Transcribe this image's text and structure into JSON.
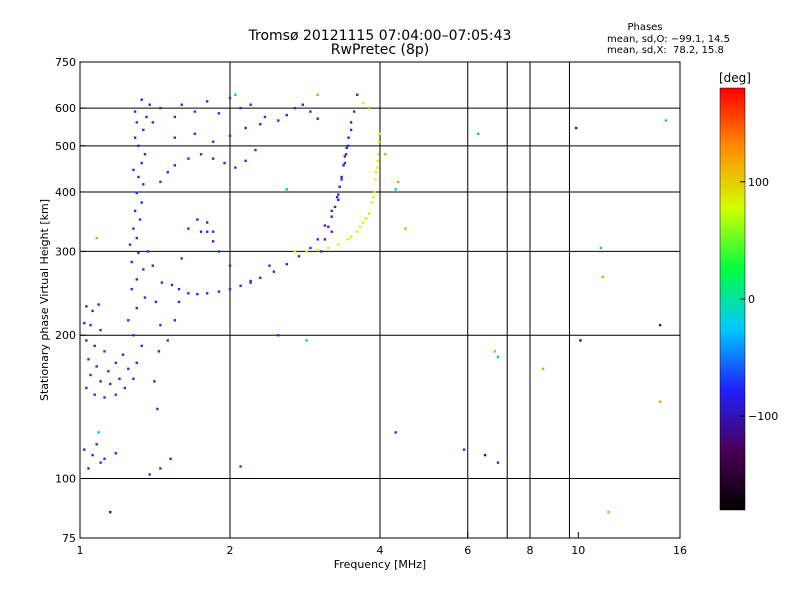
{
  "figure": {
    "title": "Tromsø 20121115 07:04:00–07:05:43",
    "subtitle": "RwPretec (8p)",
    "phase_title": "Phases",
    "phase_line_o": "mean, sd,O: −99.1, 14.5",
    "phase_line_x": "mean, sd,X:  78.2, 15.8"
  },
  "chart_data": {
    "type": "scatter",
    "xlabel": "Frequency [MHz]",
    "ylabel": "Stationary phase Virtual Height [km]",
    "x_scale": "log",
    "y_scale": "log",
    "xlim": [
      1,
      16
    ],
    "ylim": [
      75,
      750
    ],
    "x_ticks": [
      1,
      2,
      4,
      6,
      8,
      10,
      16
    ],
    "x_tick_labels": [
      "1",
      "2",
      "4",
      "6",
      "8",
      "10",
      "16"
    ],
    "x_gridlines": [
      2,
      4,
      6,
      7.2,
      8,
      9.6
    ],
    "y_ticks": [
      75,
      100,
      200,
      300,
      400,
      500,
      600,
      750
    ],
    "y_tick_labels": [
      "75",
      "100",
      "200",
      "300",
      "400",
      "500",
      "600",
      "750"
    ],
    "y_gridlines": [
      100,
      200,
      300,
      400,
      500,
      600
    ],
    "grid": true,
    "colorbar": {
      "label": "[deg]",
      "range": [
        -180,
        180
      ],
      "ticks": [
        100,
        0,
        -100
      ],
      "tick_labels": [
        "100",
        "0",
        "−100"
      ],
      "colors": [
        "#000000",
        "#4a0058",
        "#2020ff",
        "#00c8ff",
        "#00ff40",
        "#d0ff00",
        "#ff9000",
        "#ff0000"
      ]
    },
    "series": [
      {
        "color": "#2030e8",
        "values": [
          [
            1.03,
            230
          ],
          [
            1.06,
            225
          ],
          [
            1.09,
            232
          ],
          [
            1.02,
            212
          ],
          [
            1.05,
            210
          ],
          [
            1.1,
            205
          ],
          [
            1.03,
            195
          ],
          [
            1.07,
            190
          ],
          [
            1.12,
            185
          ],
          [
            1.04,
            178
          ],
          [
            1.08,
            172
          ],
          [
            1.14,
            168
          ],
          [
            1.18,
            175
          ],
          [
            1.22,
            182
          ],
          [
            1.05,
            165
          ],
          [
            1.1,
            160
          ],
          [
            1.15,
            158
          ],
          [
            1.2,
            162
          ],
          [
            1.25,
            170
          ],
          [
            1.03,
            155
          ],
          [
            1.07,
            150
          ],
          [
            1.12,
            148
          ],
          [
            1.18,
            150
          ],
          [
            1.23,
            155
          ],
          [
            1.28,
            162
          ],
          [
            1.3,
            175
          ],
          [
            1.33,
            190
          ],
          [
            1.28,
            200
          ],
          [
            1.25,
            215
          ],
          [
            1.3,
            228
          ],
          [
            1.35,
            240
          ],
          [
            1.27,
            250
          ],
          [
            1.3,
            262
          ],
          [
            1.34,
            275
          ],
          [
            1.27,
            285
          ],
          [
            1.31,
            298
          ],
          [
            1.26,
            310
          ],
          [
            1.3,
            320
          ],
          [
            1.28,
            335
          ],
          [
            1.32,
            350
          ],
          [
            1.29,
            365
          ],
          [
            1.33,
            380
          ],
          [
            1.3,
            398
          ],
          [
            1.34,
            415
          ],
          [
            1.31,
            430
          ],
          [
            1.28,
            445
          ],
          [
            1.33,
            460
          ],
          [
            1.35,
            480
          ],
          [
            1.31,
            500
          ],
          [
            1.29,
            520
          ],
          [
            1.34,
            540
          ],
          [
            1.3,
            560
          ],
          [
            1.36,
            575
          ],
          [
            1.29,
            590
          ],
          [
            1.38,
            610
          ],
          [
            1.33,
            625
          ],
          [
            1.43,
            140
          ],
          [
            1.41,
            160
          ],
          [
            1.44,
            185
          ],
          [
            1.45,
            210
          ],
          [
            1.42,
            235
          ],
          [
            1.46,
            258
          ],
          [
            1.4,
            280
          ],
          [
            1.37,
            300
          ],
          [
            1.02,
            115
          ],
          [
            1.06,
            112
          ],
          [
            1.1,
            108
          ],
          [
            1.04,
            105
          ],
          [
            1.08,
            118
          ],
          [
            1.12,
            110
          ],
          [
            1.18,
            113
          ],
          [
            1.38,
            102
          ],
          [
            1.45,
            105
          ],
          [
            1.52,
            110
          ],
          [
            1.5,
            195
          ],
          [
            1.55,
            215
          ],
          [
            1.58,
            235
          ],
          [
            1.53,
            255
          ],
          [
            1.6,
            290
          ],
          [
            1.65,
            335
          ],
          [
            1.72,
            350
          ],
          [
            1.8,
            330
          ],
          [
            1.58,
            250
          ],
          [
            1.65,
            245
          ],
          [
            1.72,
            244
          ],
          [
            1.8,
            245
          ],
          [
            1.9,
            247
          ],
          [
            2.0,
            250
          ],
          [
            2.1,
            254
          ],
          [
            2.2,
            258
          ],
          [
            2.3,
            264
          ],
          [
            2.45,
            272
          ],
          [
            2.6,
            282
          ],
          [
            2.75,
            293
          ],
          [
            2.9,
            305
          ],
          [
            3.0,
            318
          ],
          [
            3.1,
            340
          ],
          [
            3.2,
            365
          ],
          [
            3.3,
            395
          ],
          [
            3.35,
            425
          ],
          [
            3.4,
            460
          ],
          [
            3.45,
            500
          ],
          [
            3.5,
            540
          ],
          [
            3.55,
            590
          ],
          [
            3.6,
            640
          ],
          [
            1.45,
            420
          ],
          [
            1.5,
            440
          ],
          [
            1.55,
            455
          ],
          [
            1.65,
            470
          ],
          [
            1.75,
            480
          ],
          [
            1.85,
            470
          ],
          [
            1.95,
            460
          ],
          [
            2.05,
            450
          ],
          [
            2.15,
            465
          ],
          [
            2.25,
            490
          ],
          [
            1.55,
            520
          ],
          [
            1.7,
            530
          ],
          [
            1.85,
            510
          ],
          [
            2.0,
            525
          ],
          [
            2.15,
            545
          ],
          [
            2.3,
            555
          ],
          [
            1.4,
            560
          ],
          [
            1.55,
            575
          ],
          [
            1.7,
            590
          ],
          [
            1.9,
            585
          ],
          [
            2.1,
            600
          ],
          [
            2.2,
            610
          ],
          [
            2.35,
            575
          ],
          [
            2.5,
            565
          ],
          [
            2.6,
            580
          ],
          [
            2.7,
            600
          ],
          [
            2.8,
            610
          ],
          [
            2.9,
            590
          ],
          [
            3.0,
            570
          ],
          [
            1.45,
            600
          ],
          [
            1.6,
            610
          ],
          [
            1.8,
            620
          ],
          [
            2.0,
            630
          ],
          [
            2.4,
            280
          ],
          [
            2.2,
            260
          ],
          [
            2.0,
            280
          ],
          [
            1.9,
            300
          ],
          [
            1.85,
            330
          ],
          [
            2.5,
            200
          ],
          [
            4.3,
            125
          ],
          [
            2.1,
            106
          ],
          [
            5.9,
            115
          ],
          [
            6.9,
            108
          ]
        ]
      },
      {
        "color": "#6010b0",
        "values": [
          [
            3.05,
            300
          ],
          [
            3.1,
            318
          ],
          [
            3.15,
            338
          ],
          [
            3.2,
            355
          ],
          [
            3.25,
            372
          ],
          [
            3.28,
            390
          ],
          [
            3.32,
            410
          ],
          [
            3.35,
            430
          ],
          [
            3.38,
            455
          ],
          [
            3.4,
            475
          ],
          [
            3.43,
            495
          ],
          [
            3.46,
            520
          ],
          [
            3.5,
            560
          ],
          [
            3.2,
            330
          ],
          [
            3.3,
            385
          ],
          [
            3.42,
            480
          ],
          [
            1.75,
            330
          ],
          [
            1.8,
            345
          ],
          [
            1.85,
            315
          ]
        ]
      },
      {
        "color": "#c0ff00",
        "values": [
          [
            2.7,
            300
          ],
          [
            2.85,
            300
          ],
          [
            3.0,
            302
          ],
          [
            3.15,
            305
          ],
          [
            3.3,
            310
          ],
          [
            3.45,
            318
          ],
          [
            3.6,
            330
          ],
          [
            3.7,
            345
          ],
          [
            3.8,
            360
          ],
          [
            3.85,
            380
          ],
          [
            3.9,
            400
          ],
          [
            3.92,
            425
          ],
          [
            3.95,
            450
          ],
          [
            3.97,
            480
          ],
          [
            3.98,
            510
          ],
          [
            3.99,
            530
          ],
          [
            3.5,
            322
          ],
          [
            3.65,
            338
          ],
          [
            3.75,
            352
          ],
          [
            3.88,
            390
          ],
          [
            3.93,
            440
          ],
          [
            3.96,
            465
          ],
          [
            3.7,
            615
          ]
        ]
      },
      {
        "color": "#ff9a00",
        "values": [
          [
            4.35,
            420
          ],
          [
            4.1,
            480
          ],
          [
            4.5,
            335
          ],
          [
            6.8,
            185
          ],
          [
            8.5,
            170
          ],
          [
            11.2,
            265
          ],
          [
            1.08,
            320
          ],
          [
            3.8,
            600
          ],
          [
            3.0,
            640
          ],
          [
            11.5,
            85
          ],
          [
            14.6,
            145
          ]
        ]
      },
      {
        "color": "#00c0e0",
        "values": [
          [
            6.3,
            530
          ],
          [
            4.3,
            405
          ],
          [
            2.6,
            405
          ],
          [
            2.85,
            195
          ],
          [
            6.9,
            180
          ],
          [
            11.1,
            305
          ],
          [
            15.0,
            565
          ],
          [
            1.09,
            125
          ],
          [
            2.05,
            640
          ]
        ]
      },
      {
        "color": "#202060",
        "values": [
          [
            9.9,
            545
          ],
          [
            10.1,
            195
          ],
          [
            14.6,
            210
          ],
          [
            1.15,
            85
          ],
          [
            6.5,
            112
          ]
        ]
      }
    ]
  }
}
